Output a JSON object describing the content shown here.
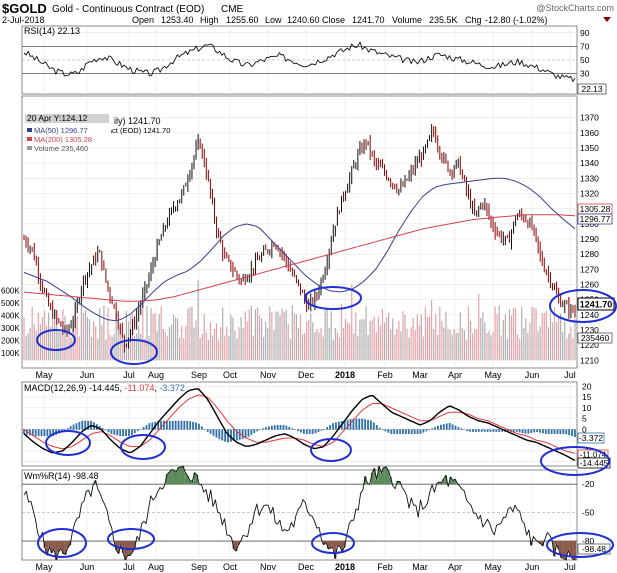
{
  "header": {
    "symbol": "$GOLD",
    "description": "Gold - Continuous Contract (EOD)",
    "exchange": "CME",
    "copyright": "@StockCharts.com",
    "date": "2-Jul-2018",
    "open_label": "Open",
    "open_value": "1253.40",
    "high_label": "High",
    "high_value": "1255.60",
    "low_label": "Low",
    "low_value": "1240.60",
    "close_label": "Close",
    "close_value": "1241.70",
    "volume_label": "Volume",
    "volume_value": "235.5K",
    "chg_label": "Chg",
    "chg_value": "-12.80 (-1.02%)"
  },
  "colors": {
    "price_bars": "#8b0000",
    "ma50": "#3b3d8f",
    "ma200": "#d0434f",
    "volume_up": "#b0b0b0",
    "volume_down": "#e8a3a8",
    "macd_line": "#000000",
    "signal_line": "#e0393f",
    "histogram": "#2e6fa8",
    "willr_overbought": "#5a8a5a",
    "willr_oversold": "#8b5a4a",
    "highlight_ellipse": "#1f2fd0"
  },
  "chart_data": [
    {
      "type": "line",
      "panel": "rsi",
      "title": "RSI(14) 22.13",
      "current_value_label": "22.13",
      "ylim": [
        0,
        100
      ],
      "y_ticks": [
        30,
        50,
        70,
        90
      ],
      "series": [
        {
          "values": [
            62,
            55,
            48,
            40,
            34,
            30,
            29,
            33,
            46,
            52,
            55,
            50,
            44,
            38,
            34,
            31,
            30,
            35,
            44,
            52,
            58,
            63,
            68,
            72,
            66,
            58,
            50,
            45,
            42,
            46,
            50,
            53,
            56,
            52,
            48,
            44,
            45,
            50,
            54,
            60,
            64,
            70,
            72,
            66,
            62,
            58,
            55,
            52,
            49,
            46,
            50,
            55,
            58,
            56,
            52,
            50,
            47,
            44,
            42,
            40,
            43,
            46,
            48,
            44,
            40,
            36,
            30,
            26,
            23,
            22
          ]
        }
      ]
    },
    {
      "type": "line",
      "panel": "price",
      "legend": [
        "Gold - Continuous Contract (EOD) 1241.70",
        "MA(50) 1296.77",
        "MA(200) 1305.28",
        "Volume 235,460"
      ],
      "tooltip": "20 Apr Y:124.12",
      "ylim": [
        1205,
        1375
      ],
      "y_ticks": [
        1210,
        1220,
        1230,
        1240,
        1250,
        1260,
        1270,
        1280,
        1290,
        1300,
        1310,
        1320,
        1330,
        1340,
        1350,
        1360,
        1370
      ],
      "last_price_label": "1241.70",
      "ma200_label": "1305.28",
      "ma50_label": "1296.77",
      "volume_label": "235460",
      "volume_ticks": [
        "100K",
        "200K",
        "300K",
        "400K",
        "500K",
        "600K"
      ],
      "x_labels": [
        "May",
        "Jun",
        "Jul",
        "Aug",
        "Sep",
        "Oct",
        "Nov",
        "Dec",
        "2018",
        "Feb",
        "Mar",
        "Apr",
        "May",
        "Jun",
        "Jul"
      ],
      "series": [
        {
          "name": "Price",
          "values": [
            1290,
            1283,
            1262,
            1245,
            1236,
            1228,
            1238,
            1262,
            1272,
            1282,
            1258,
            1242,
            1220,
            1232,
            1248,
            1265,
            1285,
            1300,
            1312,
            1320,
            1338,
            1355,
            1330,
            1298,
            1278,
            1270,
            1262,
            1268,
            1276,
            1282,
            1288,
            1280,
            1268,
            1258,
            1245,
            1252,
            1270,
            1295,
            1315,
            1330,
            1345,
            1355,
            1340,
            1335,
            1328,
            1322,
            1330,
            1340,
            1348,
            1362,
            1345,
            1335,
            1340,
            1322,
            1305,
            1315,
            1300,
            1292,
            1288,
            1306,
            1304,
            1296,
            1275,
            1264,
            1250,
            1245,
            1241.7
          ]
        },
        {
          "name": "MA(50)",
          "values": [
            1268,
            1265,
            1262,
            1257,
            1252,
            1246,
            1241,
            1237,
            1236,
            1240,
            1247,
            1255,
            1262,
            1266,
            1269,
            1275,
            1283,
            1292,
            1298,
            1300,
            1298,
            1290,
            1282,
            1274,
            1266,
            1260,
            1256,
            1255,
            1257,
            1262,
            1270,
            1282,
            1296,
            1308,
            1318,
            1324,
            1326,
            1327,
            1328,
            1329,
            1330,
            1330,
            1328,
            1324,
            1318,
            1310,
            1303,
            1296.77
          ]
        },
        {
          "name": "MA(200)",
          "values": [
            1255,
            1254,
            1253,
            1252,
            1251,
            1250,
            1249,
            1249,
            1250,
            1252,
            1255,
            1258,
            1261,
            1264,
            1267,
            1270,
            1273,
            1276,
            1279,
            1282,
            1285,
            1288,
            1291,
            1294,
            1297,
            1299,
            1301,
            1303,
            1304,
            1305,
            1306,
            1306,
            1306,
            1305.28
          ]
        }
      ]
    },
    {
      "type": "line",
      "panel": "macd",
      "title": "MACD(12,26,9) -14.445, -11.074, -3.372",
      "ylim": [
        -17,
        22
      ],
      "y_ticks": [
        -15,
        -10,
        -5,
        0,
        5,
        10,
        15,
        20
      ],
      "value_labels": [
        "-3.372",
        "-11.074",
        "-14.445"
      ],
      "series": [
        {
          "name": "MACD",
          "values": [
            -2,
            -6,
            -9,
            -11,
            -10,
            -6,
            -1,
            2,
            0,
            -5,
            -9,
            -11,
            -8,
            -2,
            4,
            9,
            14,
            18,
            19,
            14,
            6,
            -2,
            -6,
            -8,
            -7,
            -5,
            -3,
            -2,
            -4,
            -7,
            -9,
            -8,
            -3,
            3,
            9,
            14,
            16,
            12,
            8,
            6,
            4,
            2,
            4,
            8,
            11,
            9,
            6,
            4,
            3,
            1,
            -1,
            -3,
            -5,
            -6,
            -8,
            -10,
            -12,
            -14.445
          ]
        },
        {
          "name": "Signal",
          "values": [
            0,
            -3,
            -6,
            -8,
            -9,
            -8,
            -5,
            -2,
            -1,
            -3,
            -6,
            -8,
            -8,
            -5,
            0,
            5,
            10,
            14,
            16,
            15,
            10,
            4,
            -1,
            -4,
            -6,
            -6,
            -5,
            -4,
            -4,
            -5,
            -7,
            -8,
            -6,
            -1,
            4,
            9,
            12,
            12,
            10,
            8,
            6,
            4,
            4,
            6,
            8,
            8,
            7,
            5,
            4,
            2,
            0,
            -2,
            -3,
            -5,
            -6,
            -8,
            -10,
            -11.074
          ]
        },
        {
          "name": "Histogram",
          "values": [
            -2,
            -3,
            -3,
            -3,
            -1,
            2,
            4,
            4,
            1,
            -2,
            -3,
            -3,
            0,
            3,
            4,
            4,
            4,
            4,
            3,
            -1,
            -4,
            -6,
            -5,
            -4,
            -1,
            1,
            2,
            2,
            0,
            -2,
            -2,
            0,
            3,
            4,
            5,
            5,
            4,
            0,
            -2,
            -2,
            -2,
            -2,
            0,
            2,
            3,
            1,
            -1,
            -1,
            -1,
            -1,
            -1,
            -1,
            -2,
            -1,
            -2,
            -2,
            -2,
            -3.372
          ]
        }
      ]
    },
    {
      "type": "line",
      "panel": "willr",
      "title": "Wm%R(14) -98.48",
      "ylim": [
        -100,
        -5
      ],
      "y_ticks": [
        -20,
        -50,
        -80
      ],
      "current_value_label": "-98.48",
      "x_labels": [
        "May",
        "Jun",
        "Jul",
        "Aug",
        "Sep",
        "Oct",
        "Nov",
        "Dec",
        "2018",
        "Feb",
        "Mar",
        "Apr",
        "May",
        "Jun",
        "Jul"
      ],
      "series": [
        {
          "values": [
            -30,
            -50,
            -85,
            -95,
            -92,
            -70,
            -40,
            -20,
            -45,
            -80,
            -95,
            -90,
            -60,
            -30,
            -15,
            -8,
            -5,
            -12,
            -25,
            -40,
            -60,
            -85,
            -75,
            -50,
            -40,
            -55,
            -70,
            -60,
            -40,
            -55,
            -80,
            -95,
            -85,
            -50,
            -20,
            -10,
            -8,
            -15,
            -30,
            -50,
            -40,
            -25,
            -15,
            -20,
            -35,
            -50,
            -60,
            -70,
            -55,
            -45,
            -65,
            -85,
            -75,
            -90,
            -96,
            -98.48
          ]
        }
      ]
    }
  ]
}
